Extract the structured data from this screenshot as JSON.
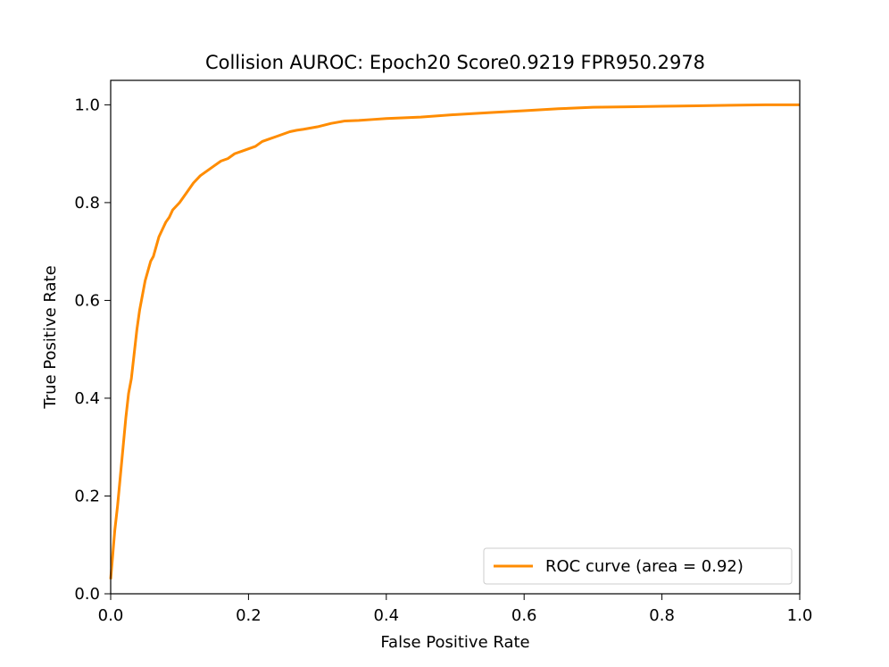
{
  "chart_data": {
    "type": "line",
    "title": "Collision AUROC: Epoch20 Score0.9219  FPR950.2978",
    "xlabel": "False Positive Rate",
    "ylabel": "True Positive Rate",
    "xlim": [
      0.0,
      1.0
    ],
    "ylim": [
      0.0,
      1.05
    ],
    "xticks": [
      "0.0",
      "0.2",
      "0.4",
      "0.6",
      "0.8",
      "1.0"
    ],
    "yticks": [
      "0.0",
      "0.2",
      "0.4",
      "0.6",
      "0.8",
      "1.0"
    ],
    "grid": false,
    "legend_position": "lower-right",
    "series": [
      {
        "name": "ROC curve (area = 0.92)",
        "color": "#ff8c00",
        "x": [
          0.0,
          0.003,
          0.006,
          0.01,
          0.014,
          0.018,
          0.022,
          0.026,
          0.03,
          0.034,
          0.038,
          0.042,
          0.046,
          0.05,
          0.054,
          0.058,
          0.062,
          0.066,
          0.07,
          0.075,
          0.08,
          0.085,
          0.09,
          0.1,
          0.11,
          0.12,
          0.13,
          0.14,
          0.15,
          0.16,
          0.17,
          0.18,
          0.19,
          0.2,
          0.21,
          0.22,
          0.23,
          0.24,
          0.25,
          0.26,
          0.27,
          0.28,
          0.3,
          0.32,
          0.34,
          0.36,
          0.38,
          0.4,
          0.45,
          0.5,
          0.55,
          0.6,
          0.65,
          0.7,
          0.75,
          0.8,
          0.85,
          0.9,
          0.95,
          1.0
        ],
        "y": [
          0.03,
          0.08,
          0.13,
          0.18,
          0.24,
          0.3,
          0.36,
          0.41,
          0.44,
          0.49,
          0.54,
          0.58,
          0.61,
          0.64,
          0.66,
          0.68,
          0.69,
          0.71,
          0.73,
          0.745,
          0.76,
          0.77,
          0.785,
          0.8,
          0.82,
          0.84,
          0.855,
          0.865,
          0.875,
          0.885,
          0.89,
          0.9,
          0.905,
          0.91,
          0.915,
          0.925,
          0.93,
          0.935,
          0.94,
          0.945,
          0.948,
          0.95,
          0.955,
          0.962,
          0.967,
          0.968,
          0.97,
          0.972,
          0.975,
          0.98,
          0.984,
          0.988,
          0.992,
          0.995,
          0.996,
          0.997,
          0.998,
          0.999,
          1.0,
          1.0
        ]
      }
    ]
  }
}
